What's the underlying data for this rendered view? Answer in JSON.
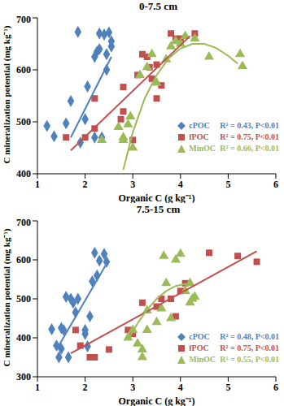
{
  "chart_data": [
    {
      "type": "scatter",
      "title": "0-7.5 cm",
      "x_label": "Organic C (g kg⁻¹)",
      "y_label": "C mineralization potential (mg kg⁻¹)",
      "xlim": [
        1,
        6
      ],
      "xticks": [
        1,
        2,
        3,
        4,
        5,
        6
      ],
      "ylim": [
        400,
        700
      ],
      "yticks": [
        400,
        500,
        600,
        700
      ],
      "grid": false,
      "legend": "center right",
      "series": [
        {
          "name": "cPOC",
          "label": "R² = 0.43, P<0.01",
          "color": "#4F81BD",
          "marker": "diamond",
          "x": [
            1.2,
            1.35,
            1.6,
            1.7,
            1.85,
            1.9,
            2.0,
            2.05,
            2.2,
            2.25,
            2.3,
            2.3,
            2.4,
            2.45,
            2.45,
            2.5,
            2.55,
            2.55,
            2.35,
            2.2
          ],
          "values": [
            492,
            472,
            497,
            540,
            673,
            460,
            505,
            568,
            625,
            635,
            640,
            670,
            668,
            600,
            630,
            672,
            645,
            655,
            470,
            470
          ],
          "trend": {
            "x": [
              1.7,
              2.55
            ],
            "values": [
              470,
              625
            ]
          }
        },
        {
          "name": "fPOC",
          "label": "R² = 0.75, P<0.01",
          "color": "#C0504D",
          "marker": "square",
          "x": [
            1.6,
            2.0,
            2.2,
            2.2,
            2.8,
            2.8,
            2.75,
            3.0,
            3.1,
            3.2,
            3.3,
            3.35,
            3.4,
            3.5,
            3.6,
            3.8,
            3.9,
            4.0,
            4.3,
            3.5
          ],
          "values": [
            470,
            470,
            545,
            487,
            567,
            520,
            505,
            465,
            590,
            630,
            625,
            605,
            583,
            545,
            570,
            670,
            660,
            660,
            670,
            610
          ],
          "trend": {
            "x": [
              1.7,
              4.2
            ],
            "values": [
              445,
              665
            ]
          }
        },
        {
          "name": "MinOC",
          "label": "R² = 0.66, P<0.01",
          "color": "#9BBB59",
          "marker": "triangle",
          "x": [
            2.35,
            2.7,
            2.8,
            2.9,
            2.95,
            3.0,
            3.15,
            3.3,
            3.4,
            3.5,
            3.7,
            3.8,
            3.9,
            4.0,
            4.1,
            4.3,
            4.6,
            5.25,
            5.3,
            2.8
          ],
          "values": [
            465,
            490,
            465,
            495,
            510,
            450,
            590,
            605,
            630,
            575,
            620,
            645,
            655,
            650,
            665,
            660,
            625,
            630,
            607,
            470
          ],
          "trend": {
            "x": [
              2.8,
              3.0,
              3.25,
              3.5,
              3.75,
              4.0,
              4.25,
              4.5,
              4.75,
              5.0,
              5.2
            ],
            "values": [
              408,
              480,
              545,
              590,
              622,
              641,
              650,
              650,
              642,
              627,
              612
            ]
          }
        }
      ]
    },
    {
      "type": "scatter",
      "title": "7.5-15 cm",
      "x_label": "Organic C (g kg⁻¹)",
      "y_label": "C mineralization potential (mg kg⁻¹)",
      "xlim": [
        1,
        6
      ],
      "xticks": [
        1,
        2,
        3,
        4,
        5,
        6
      ],
      "ylim": [
        300,
        700
      ],
      "yticks": [
        300,
        400,
        500,
        600,
        700
      ],
      "grid": false,
      "legend": "lower right",
      "series": [
        {
          "name": "cPOC",
          "label": "R² = 0.48, P<0.01",
          "color": "#4F81BD",
          "marker": "diamond",
          "x": [
            1.3,
            1.4,
            1.45,
            1.5,
            1.55,
            1.6,
            1.65,
            1.7,
            1.75,
            1.8,
            1.85,
            2.0,
            2.05,
            2.1,
            2.15,
            2.2,
            2.25,
            2.3,
            2.4,
            2.45,
            1.5,
            2.0
          ],
          "values": [
            422,
            380,
            350,
            372,
            420,
            505,
            350,
            500,
            490,
            465,
            500,
            410,
            378,
            455,
            545,
            618,
            560,
            598,
            615,
            595,
            425,
            420
          ],
          "trend": {
            "x": [
              1.4,
              2.45
            ],
            "values": [
              370,
              590
            ]
          }
        },
        {
          "name": "fPOC",
          "label": "R² = 0.75, P<0.01",
          "color": "#C0504D",
          "marker": "square",
          "x": [
            1.8,
            1.9,
            2.1,
            2.2,
            2.5,
            3.0,
            3.2,
            3.5,
            3.6,
            3.8,
            3.9,
            4.0,
            4.1,
            4.6,
            5.2,
            5.6,
            2.9
          ],
          "values": [
            420,
            380,
            350,
            350,
            370,
            410,
            490,
            480,
            500,
            500,
            455,
            520,
            540,
            618,
            610,
            595,
            420
          ],
          "trend": {
            "x": [
              1.7,
              5.6
            ],
            "values": [
              360,
              622
            ]
          }
        },
        {
          "name": "MinOC",
          "label": "R² = 0.55, P<0.01",
          "color": "#9BBB59",
          "marker": "triangle",
          "x": [
            2.9,
            3.0,
            3.1,
            3.2,
            3.2,
            3.3,
            3.5,
            3.6,
            3.65,
            3.7,
            3.8,
            3.9,
            4.0,
            4.1,
            4.2,
            4.25,
            4.3,
            4.2,
            3.3
          ],
          "values": [
            400,
            420,
            385,
            370,
            350,
            420,
            440,
            475,
            610,
            540,
            450,
            600,
            615,
            520,
            540,
            500,
            505,
            490,
            470
          ],
          "trend": {
            "x": [
              2.9,
              3.1,
              3.3,
              3.5,
              3.7,
              3.9,
              4.1,
              4.25
            ],
            "values": [
              395,
              437,
              472,
              500,
              520,
              533,
              538,
              537
            ]
          }
        }
      ]
    }
  ]
}
